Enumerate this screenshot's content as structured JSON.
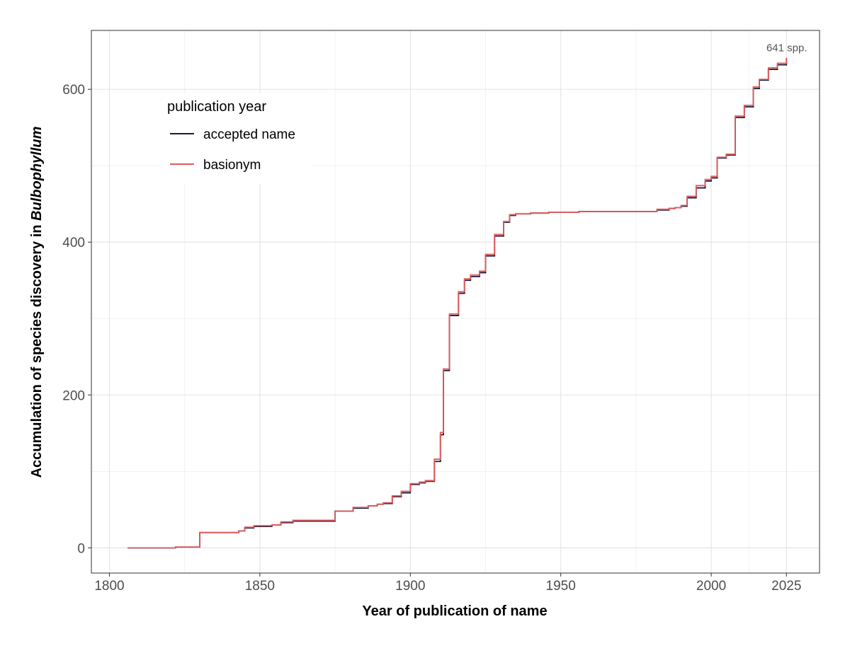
{
  "chart_data": {
    "type": "line",
    "step": true,
    "xlabel": "Year of publication of name",
    "ylabel_prefix": "Accumulation of species discovery in ",
    "ylabel_italic": "Bulbophyllum",
    "xlim": [
      1794,
      2036
    ],
    "ylim": [
      -33,
      677
    ],
    "x_ticks": [
      1800,
      1850,
      1900,
      1950,
      2000,
      2025
    ],
    "x_minor_ticks": [
      1825,
      1875,
      1925,
      1975,
      2012.5
    ],
    "y_ticks": [
      0,
      200,
      400,
      600
    ],
    "y_minor_ticks": [
      100,
      300,
      500
    ],
    "grid": true,
    "legend": {
      "title": "publication year",
      "position": "top-left inside"
    },
    "annotation": {
      "text": "641 spp.",
      "x": 2030,
      "y": 645
    },
    "series": [
      {
        "name": "accepted name",
        "color": "#1a1a3a",
        "x": [
          1806,
          1822,
          1830,
          1843,
          1845,
          1848,
          1854,
          1857,
          1861,
          1875,
          1881,
          1886,
          1889,
          1891,
          1894,
          1897,
          1900,
          1903,
          1905,
          1908,
          1910,
          1911,
          1913,
          1916,
          1918,
          1920,
          1923,
          1925,
          1928,
          1931,
          1933,
          1935,
          1938,
          1940,
          1943,
          1946,
          1956,
          1978,
          1982,
          1986,
          1988,
          1990,
          1992,
          1995,
          1998,
          2000,
          2002,
          2005,
          2008,
          2011,
          2014,
          2016,
          2019,
          2022,
          2025
        ],
        "y": [
          0,
          1,
          20,
          22,
          26,
          28,
          30,
          33,
          35,
          48,
          52,
          55,
          57,
          58,
          67,
          72,
          83,
          85,
          87,
          113,
          148,
          232,
          304,
          333,
          350,
          355,
          360,
          382,
          408,
          426,
          435,
          437,
          437,
          438,
          438,
          439,
          440,
          440,
          442,
          444,
          445,
          447,
          458,
          471,
          480,
          484,
          510,
          514,
          563,
          577,
          601,
          612,
          626,
          632,
          641
        ]
      },
      {
        "name": "basionym",
        "color": "#e05a5a",
        "x": [
          1806,
          1822,
          1830,
          1843,
          1845,
          1848,
          1854,
          1857,
          1861,
          1875,
          1881,
          1886,
          1889,
          1891,
          1894,
          1897,
          1900,
          1903,
          1905,
          1908,
          1910,
          1911,
          1913,
          1916,
          1918,
          1920,
          1923,
          1925,
          1928,
          1931,
          1933,
          1935,
          1938,
          1940,
          1943,
          1946,
          1956,
          1978,
          1982,
          1986,
          1988,
          1990,
          1992,
          1995,
          1998,
          2000,
          2002,
          2005,
          2008,
          2011,
          2014,
          2016,
          2019,
          2022,
          2025
        ],
        "y": [
          0,
          1,
          20,
          22,
          27,
          29,
          30,
          34,
          36,
          48,
          53,
          55,
          57,
          59,
          68,
          74,
          84,
          86,
          88,
          116,
          151,
          234,
          306,
          335,
          352,
          357,
          362,
          384,
          410,
          427,
          436,
          437,
          437,
          438,
          438,
          439,
          440,
          440,
          443,
          444,
          445,
          448,
          460,
          474,
          482,
          486,
          511,
          515,
          565,
          579,
          603,
          613,
          628,
          634,
          641
        ]
      }
    ]
  }
}
